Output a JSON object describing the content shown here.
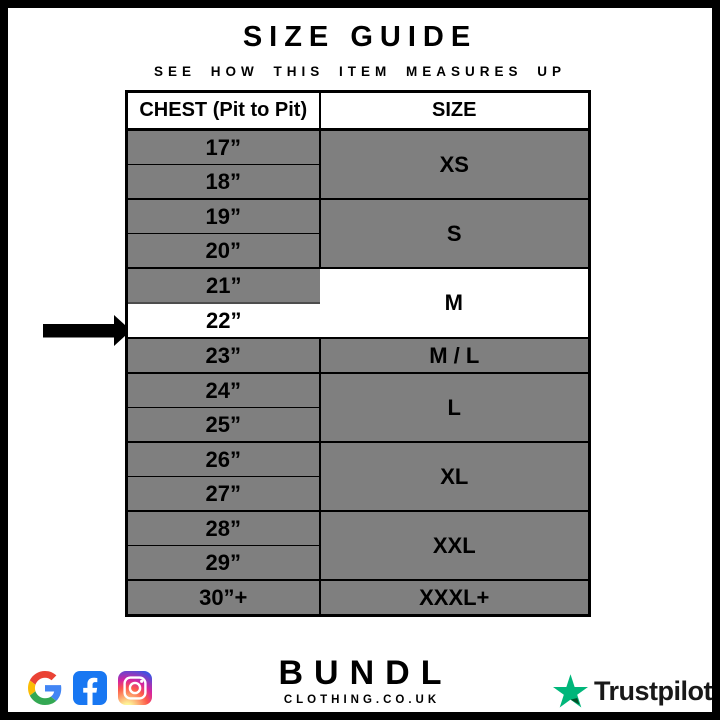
{
  "page": {
    "title": "SIZE GUIDE",
    "subtitle": "SEE HOW THIS ITEM MEASURES UP"
  },
  "table": {
    "chest_header": "CHEST (Pit to Pit)",
    "size_header": "SIZE",
    "groups": [
      {
        "size": "XS",
        "chests": [
          "17”",
          "18”"
        ],
        "highlight": false
      },
      {
        "size": "S",
        "chests": [
          "19”",
          "20”"
        ],
        "highlight": false
      },
      {
        "size": "M",
        "chests": [
          "21”",
          "22”"
        ],
        "highlight": true,
        "highlight_index": 1
      },
      {
        "size": "M / L",
        "chests": [
          "23”"
        ],
        "highlight": false
      },
      {
        "size": "L",
        "chests": [
          "24”",
          "25”"
        ],
        "highlight": false
      },
      {
        "size": "XL",
        "chests": [
          "26”",
          "27”"
        ],
        "highlight": false
      },
      {
        "size": "XXL",
        "chests": [
          "28”",
          "29”"
        ],
        "highlight": false
      },
      {
        "size": "XXXL+",
        "chests": [
          "30”+"
        ],
        "highlight": false
      }
    ]
  },
  "footer": {
    "brand_name": "BUNDL",
    "brand_domain": "CLOTHING.CO.UK",
    "trustpilot_label": "Trustpilot",
    "social_icons": [
      "google",
      "facebook",
      "instagram"
    ]
  },
  "colors": {
    "cell_grey": "#7f7f7f",
    "highlight_white": "#ffffff",
    "border_black": "#000000",
    "facebook_blue": "#1877F2",
    "trustpilot_green": "#00B67A",
    "trustpilot_dark_green": "#005128"
  },
  "chart_data": {
    "type": "table",
    "title": "SIZE GUIDE",
    "subtitle": "SEE HOW THIS ITEM MEASURES UP",
    "columns": [
      "CHEST (Pit to Pit)",
      "SIZE"
    ],
    "rows": [
      [
        "17”",
        "XS"
      ],
      [
        "18”",
        "XS"
      ],
      [
        "19”",
        "S"
      ],
      [
        "20”",
        "S"
      ],
      [
        "21”",
        "M"
      ],
      [
        "22”",
        "M"
      ],
      [
        "23”",
        "M / L"
      ],
      [
        "24”",
        "L"
      ],
      [
        "25”",
        "L"
      ],
      [
        "26”",
        "XL"
      ],
      [
        "27”",
        "XL"
      ],
      [
        "28”",
        "XXL"
      ],
      [
        "29”",
        "XXL"
      ],
      [
        "30”+",
        "XXXL+"
      ]
    ],
    "highlighted_row": "22”",
    "highlighted_size": "M"
  }
}
